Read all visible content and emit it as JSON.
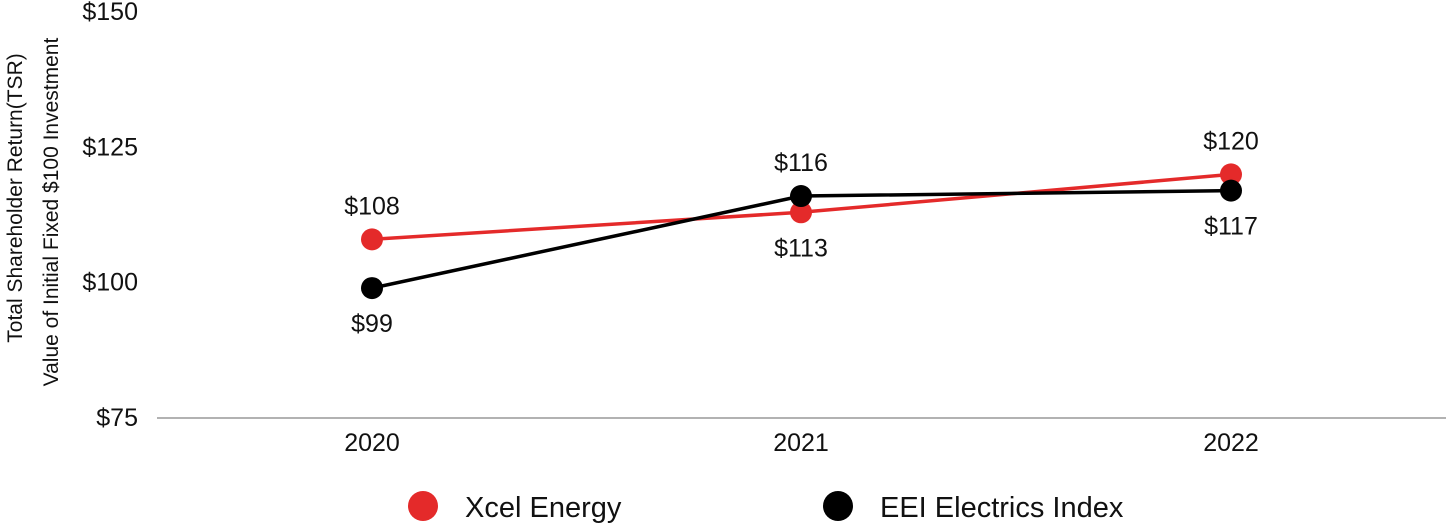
{
  "chart_data": {
    "type": "line",
    "ylabel_line1": "Total Shareholder Return(TSR)",
    "ylabel_line2": "Value of Initial Fixed $100 Investment",
    "xlabel": "",
    "categories": [
      "2020",
      "2021",
      "2022"
    ],
    "ylim": [
      75,
      150
    ],
    "yticks": [
      75,
      100,
      125,
      150
    ],
    "ytick_labels": [
      "$75",
      "$100",
      "$125",
      "$150"
    ],
    "grid": false,
    "legend_position": "bottom",
    "series": [
      {
        "name": "Xcel Energy",
        "color": "#e42a2a",
        "values": [
          108,
          113,
          120
        ],
        "labels": [
          "$108",
          "$113",
          "$120"
        ],
        "label_side": [
          "above",
          "below",
          "above"
        ]
      },
      {
        "name": "EEI Electrics Index",
        "color": "#000000",
        "values": [
          99,
          116,
          117
        ],
        "labels": [
          "$99",
          "$116",
          "$117"
        ],
        "label_side": [
          "below",
          "above",
          "below"
        ]
      }
    ]
  }
}
